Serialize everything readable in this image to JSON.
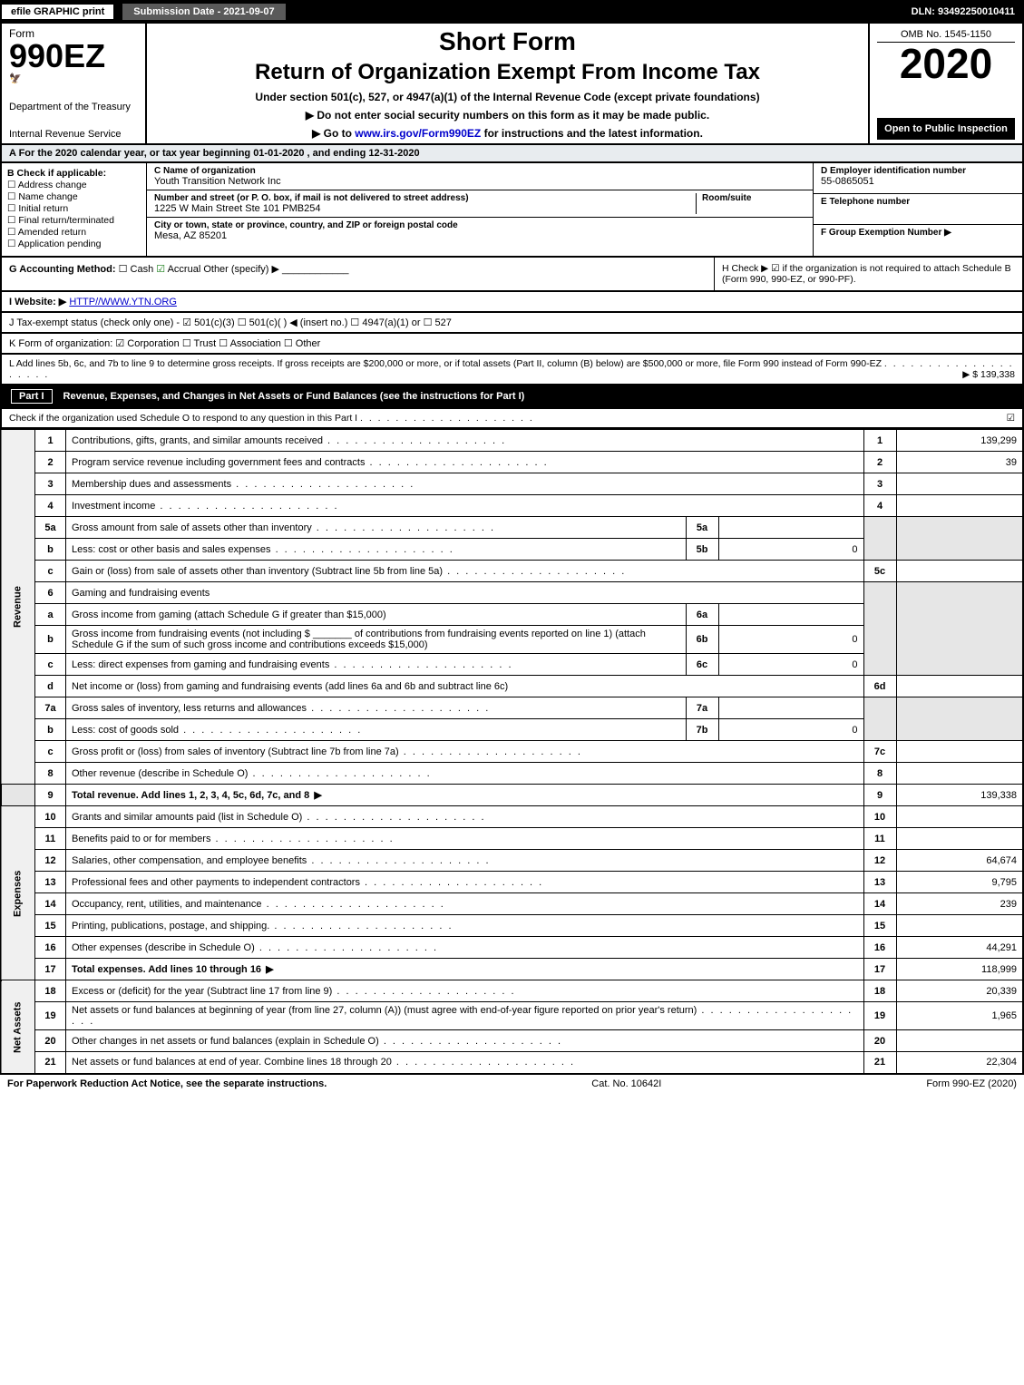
{
  "topbar": {
    "efile": "efile GRAPHIC print",
    "submission": "Submission Date - 2021-09-07",
    "dln": "DLN: 93492250010411"
  },
  "header": {
    "form_label": "Form",
    "form_number": "990EZ",
    "dept": "Department of the Treasury",
    "irs": "Internal Revenue Service",
    "short": "Short Form",
    "return": "Return of Organization Exempt From Income Tax",
    "under": "Under section 501(c), 527, or 4947(a)(1) of the Internal Revenue Code (except private foundations)",
    "warn": "▶ Do not enter social security numbers on this form as it may be made public.",
    "goto_pre": "▶ Go to ",
    "goto_url": "www.irs.gov/Form990EZ",
    "goto_post": " for instructions and the latest information.",
    "omb": "OMB No. 1545-1150",
    "year": "2020",
    "open": "Open to Public Inspection"
  },
  "row_a": "A For the 2020 calendar year, or tax year beginning 01-01-2020 , and ending 12-31-2020",
  "box_b": {
    "title": "B Check if applicable:",
    "items": [
      "Address change",
      "Name change",
      "Initial return",
      "Final return/terminated",
      "Amended return",
      "Application pending"
    ]
  },
  "box_c": {
    "name_lbl": "C Name of organization",
    "name": "Youth Transition Network Inc",
    "street_lbl": "Number and street (or P. O. box, if mail is not delivered to street address)",
    "room_lbl": "Room/suite",
    "street": "1225 W Main Street Ste 101 PMB254",
    "city_lbl": "City or town, state or province, country, and ZIP or foreign postal code",
    "city": "Mesa, AZ  85201"
  },
  "box_d": {
    "ein_lbl": "D Employer identification number",
    "ein": "55-0865051",
    "tel_lbl": "E Telephone number",
    "f_lbl": "F Group Exemption Number  ▶"
  },
  "row_g": {
    "g": "G Accounting Method:",
    "cash": "Cash",
    "accrual": "Accrual",
    "other": "Other (specify) ▶"
  },
  "row_h": {
    "text1": "H Check ▶ ☑ if the organization is not required to attach Schedule B",
    "text2": "(Form 990, 990-EZ, or 990-PF)."
  },
  "row_i": {
    "label": "I Website: ▶",
    "url": "HTTP//WWW.YTN.ORG"
  },
  "row_j": "J Tax-exempt status (check only one) - ☑ 501(c)(3) ☐ 501(c)( ) ◀ (insert no.) ☐ 4947(a)(1) or ☐ 527",
  "row_k": "K Form of organization: ☑ Corporation  ☐ Trust  ☐ Association  ☐ Other",
  "row_l": {
    "text": "L Add lines 5b, 6c, and 7b to line 9 to determine gross receipts. If gross receipts are $200,000 or more, or if total assets (Part II, column (B) below) are $500,000 or more, file Form 990 instead of Form 990-EZ",
    "amount": "▶ $ 139,338"
  },
  "part1": {
    "tag": "Part I",
    "title": "Revenue, Expenses, and Changes in Net Assets or Fund Balances (see the instructions for Part I)",
    "check": "Check if the organization used Schedule O to respond to any question in this Part I",
    "checked": "☑"
  },
  "sections": {
    "revenue": "Revenue",
    "expenses": "Expenses",
    "netassets": "Net Assets"
  },
  "lines": {
    "1": {
      "desc": "Contributions, gifts, grants, and similar amounts received",
      "val": "139,299"
    },
    "2": {
      "desc": "Program service revenue including government fees and contracts",
      "val": "39"
    },
    "3": {
      "desc": "Membership dues and assessments",
      "val": ""
    },
    "4": {
      "desc": "Investment income",
      "val": ""
    },
    "5a": {
      "desc": "Gross amount from sale of assets other than inventory",
      "sub": "5a",
      "subval": ""
    },
    "5b": {
      "desc": "Less: cost or other basis and sales expenses",
      "sub": "5b",
      "subval": "0"
    },
    "5c": {
      "desc": "Gain or (loss) from sale of assets other than inventory (Subtract line 5b from line 5a)",
      "val": ""
    },
    "6": {
      "desc": "Gaming and fundraising events"
    },
    "6a": {
      "desc": "Gross income from gaming (attach Schedule G if greater than $15,000)",
      "sub": "6a",
      "subval": ""
    },
    "6b": {
      "desc1": "Gross income from fundraising events (not including $",
      "desc2": "of contributions from fundraising events reported on line 1) (attach Schedule G if the sum of such gross income and contributions exceeds $15,000)",
      "sub": "6b",
      "subval": "0"
    },
    "6c": {
      "desc": "Less: direct expenses from gaming and fundraising events",
      "sub": "6c",
      "subval": "0"
    },
    "6d": {
      "desc": "Net income or (loss) from gaming and fundraising events (add lines 6a and 6b and subtract line 6c)",
      "val": ""
    },
    "7a": {
      "desc": "Gross sales of inventory, less returns and allowances",
      "sub": "7a",
      "subval": ""
    },
    "7b": {
      "desc": "Less: cost of goods sold",
      "sub": "7b",
      "subval": "0"
    },
    "7c": {
      "desc": "Gross profit or (loss) from sales of inventory (Subtract line 7b from line 7a)",
      "val": ""
    },
    "8": {
      "desc": "Other revenue (describe in Schedule O)",
      "val": ""
    },
    "9": {
      "desc": "Total revenue. Add lines 1, 2, 3, 4, 5c, 6d, 7c, and 8",
      "val": "139,338"
    },
    "10": {
      "desc": "Grants and similar amounts paid (list in Schedule O)",
      "val": ""
    },
    "11": {
      "desc": "Benefits paid to or for members",
      "val": ""
    },
    "12": {
      "desc": "Salaries, other compensation, and employee benefits",
      "val": "64,674"
    },
    "13": {
      "desc": "Professional fees and other payments to independent contractors",
      "val": "9,795"
    },
    "14": {
      "desc": "Occupancy, rent, utilities, and maintenance",
      "val": "239"
    },
    "15": {
      "desc": "Printing, publications, postage, and shipping.",
      "val": ""
    },
    "16": {
      "desc": "Other expenses (describe in Schedule O)",
      "val": "44,291"
    },
    "17": {
      "desc": "Total expenses. Add lines 10 through 16",
      "val": "118,999"
    },
    "18": {
      "desc": "Excess or (deficit) for the year (Subtract line 17 from line 9)",
      "val": "20,339"
    },
    "19": {
      "desc": "Net assets or fund balances at beginning of year (from line 27, column (A)) (must agree with end-of-year figure reported on prior year's return)",
      "val": "1,965"
    },
    "20": {
      "desc": "Other changes in net assets or fund balances (explain in Schedule O)",
      "val": ""
    },
    "21": {
      "desc": "Net assets or fund balances at end of year. Combine lines 18 through 20",
      "val": "22,304"
    }
  },
  "footer": {
    "left": "For Paperwork Reduction Act Notice, see the separate instructions.",
    "mid": "Cat. No. 10642I",
    "right": "Form 990-EZ (2020)"
  }
}
